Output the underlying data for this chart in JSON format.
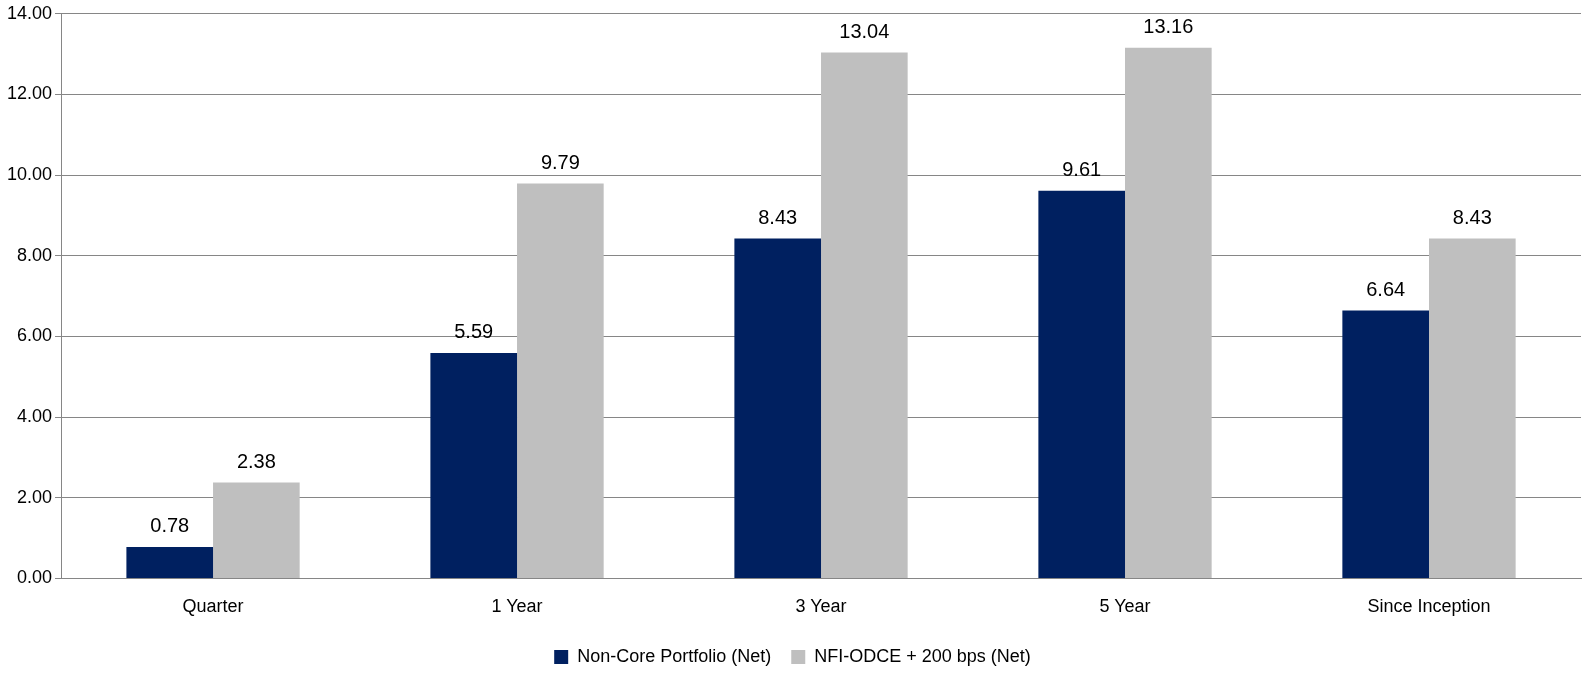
{
  "chart_data": {
    "type": "bar",
    "categories": [
      "Quarter",
      "1 Year",
      "3 Year",
      "5 Year",
      "Since Inception"
    ],
    "series": [
      {
        "name": "Non-Core Portfolio (Net)",
        "color": "#002060",
        "values": [
          0.78,
          5.59,
          8.43,
          9.61,
          6.64
        ]
      },
      {
        "name": "NFI-ODCE + 200 bps (Net)",
        "color": "#bfbfbf",
        "values": [
          2.38,
          9.79,
          13.04,
          13.16,
          8.43
        ]
      }
    ],
    "ylim": [
      0,
      14
    ],
    "yticks": [
      {
        "value": 0,
        "label": "0.00"
      },
      {
        "value": 2,
        "label": "2.00"
      },
      {
        "value": 4,
        "label": "4.00"
      },
      {
        "value": 6,
        "label": "6.00"
      },
      {
        "value": 8,
        "label": "8.00"
      },
      {
        "value": 10,
        "label": "10.00"
      },
      {
        "value": 12,
        "label": "12.00"
      },
      {
        "value": 14,
        "label": "14.00"
      }
    ],
    "grid": "y",
    "legend": "bottom",
    "data_labels": true
  }
}
